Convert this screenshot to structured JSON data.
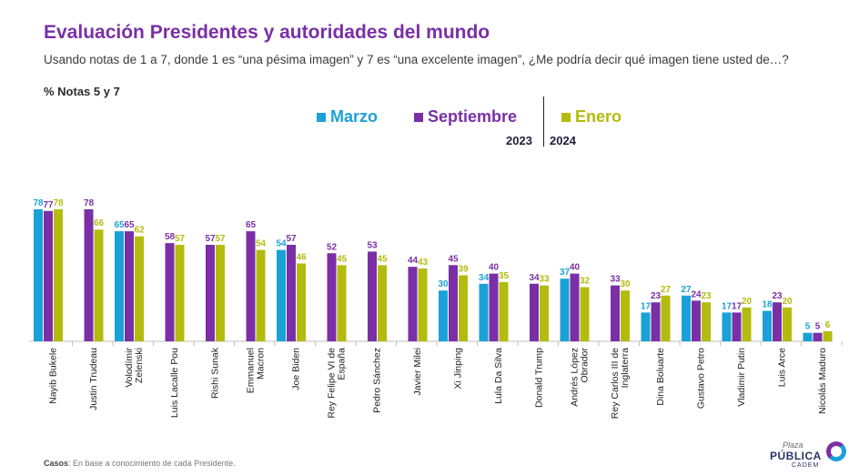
{
  "title": "Evaluación Presidentes y autoridades del mundo",
  "question": "Usando notas de 1 a 7, donde 1 es “una pésima imagen” y 7 es “una excelente imagen”, ¿Me podría decir qué imagen tiene usted de…?",
  "subtitle": "% Notas 5 y 7",
  "legend": {
    "marzo": "Marzo",
    "septiembre": "Septiembre",
    "enero": "Enero",
    "year1": "2023",
    "year2": "2024"
  },
  "colors": {
    "marzo": "#1aa1d8",
    "septiembre": "#7a2fa6",
    "enero": "#b3bc0e"
  },
  "footer": {
    "label": "Casos",
    "text": ": En base a conocimiento de cada Presidente."
  },
  "logo": {
    "line1": "Plaza",
    "line2": "PÚBLICA",
    "line3": "CADEM"
  },
  "chart_data": {
    "type": "bar",
    "categories": [
      [
        "Nayib Bukele"
      ],
      [
        "Justin Trudeau"
      ],
      [
        "Volodímir",
        "Zelenski"
      ],
      [
        "Luis Lacalle Pou"
      ],
      [
        "Rishi Sunak"
      ],
      [
        "Emmanuel",
        "Macron"
      ],
      [
        "Joe Biden"
      ],
      [
        "Rey Felipe VI de",
        "España"
      ],
      [
        "Pedro Sánchez"
      ],
      [
        "Javier Milei"
      ],
      [
        "Xi Jinping"
      ],
      [
        "Lula Da Silva"
      ],
      [
        "Donald Trump"
      ],
      [
        "Andrés López",
        "Obrador"
      ],
      [
        "Rey Carlos III de",
        "Inglaterra"
      ],
      [
        "Dina Boluarte"
      ],
      [
        "Gustavo Petro"
      ],
      [
        "Vladimir Putin"
      ],
      [
        "Luis Arce"
      ],
      [
        "Nicolás Maduro"
      ]
    ],
    "series": [
      {
        "name": "Marzo",
        "values": [
          78,
          null,
          65,
          null,
          null,
          null,
          54,
          null,
          null,
          null,
          30,
          34,
          null,
          37,
          null,
          17,
          27,
          17,
          18,
          5
        ]
      },
      {
        "name": "Septiembre",
        "values": [
          77,
          78,
          65,
          58,
          57,
          65,
          57,
          52,
          53,
          44,
          45,
          40,
          34,
          40,
          33,
          23,
          24,
          17,
          23,
          5
        ]
      },
      {
        "name": "Enero",
        "values": [
          78,
          66,
          62,
          57,
          57,
          54,
          46,
          45,
          45,
          43,
          39,
          35,
          33,
          32,
          30,
          27,
          23,
          20,
          20,
          6
        ]
      }
    ],
    "ylim": [
      0,
      100
    ]
  }
}
